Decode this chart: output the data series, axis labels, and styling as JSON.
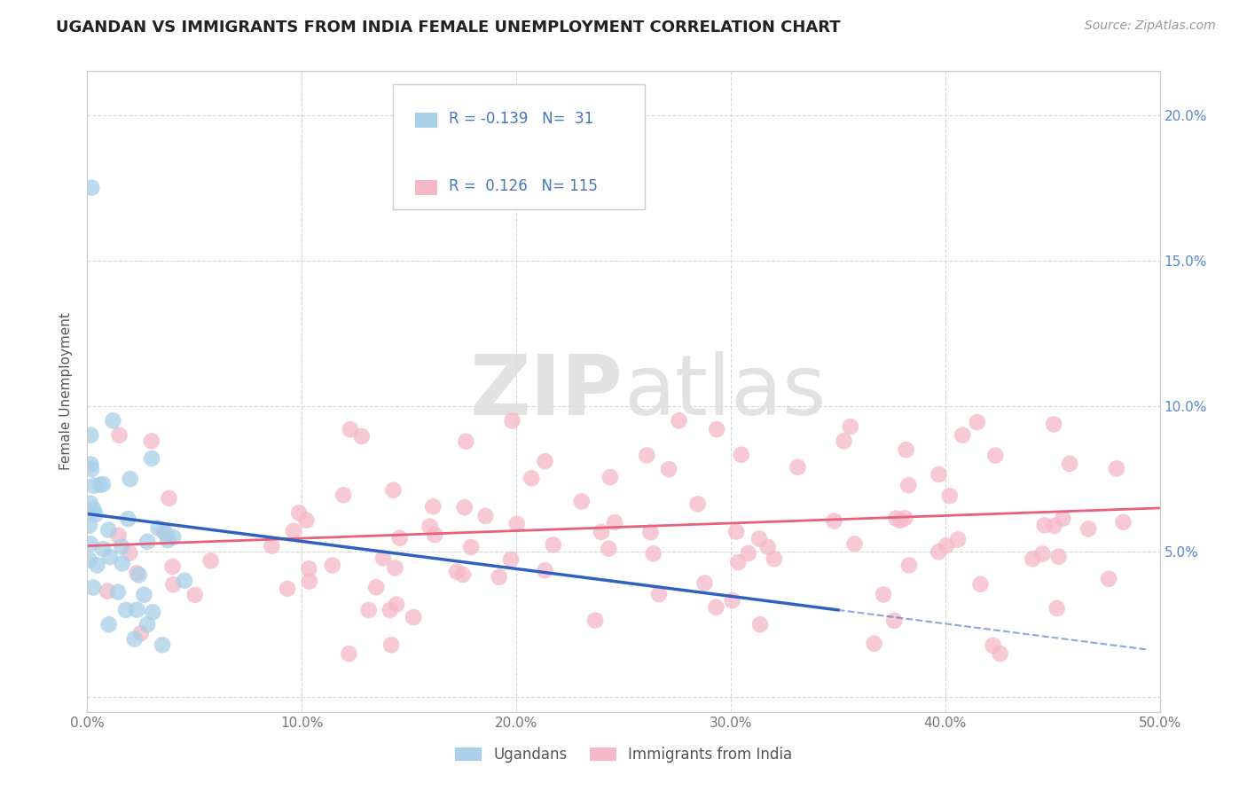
{
  "title": "UGANDAN VS IMMIGRANTS FROM INDIA FEMALE UNEMPLOYMENT CORRELATION CHART",
  "source": "Source: ZipAtlas.com",
  "ylabel": "Female Unemployment",
  "xlim": [
    0.0,
    0.5
  ],
  "ylim": [
    -0.005,
    0.215
  ],
  "xticks": [
    0.0,
    0.1,
    0.2,
    0.3,
    0.4,
    0.5
  ],
  "xtick_labels": [
    "0.0%",
    "10.0%",
    "20.0%",
    "30.0%",
    "40.0%",
    "50.0%"
  ],
  "yticks": [
    0.0,
    0.05,
    0.1,
    0.15,
    0.2
  ],
  "left_ytick_labels": [
    "",
    "",
    "",
    "",
    ""
  ],
  "right_ytick_labels": [
    "",
    "5.0%",
    "10.0%",
    "15.0%",
    "20.0%"
  ],
  "ugandan_color": "#a8d0e8",
  "india_color": "#f5b8c8",
  "ugandan_line_color": "#3060c0",
  "india_line_color": "#e8607a",
  "legend_R1": "-0.139",
  "legend_N1": "31",
  "legend_R2": "0.126",
  "legend_N2": "115",
  "background_color": "#ffffff",
  "grid_color": "#d8d8d8",
  "watermark_zip": "ZIP",
  "watermark_atlas": "atlas",
  "title_fontsize": 13,
  "source_fontsize": 10,
  "tick_fontsize": 11,
  "ylabel_fontsize": 11
}
